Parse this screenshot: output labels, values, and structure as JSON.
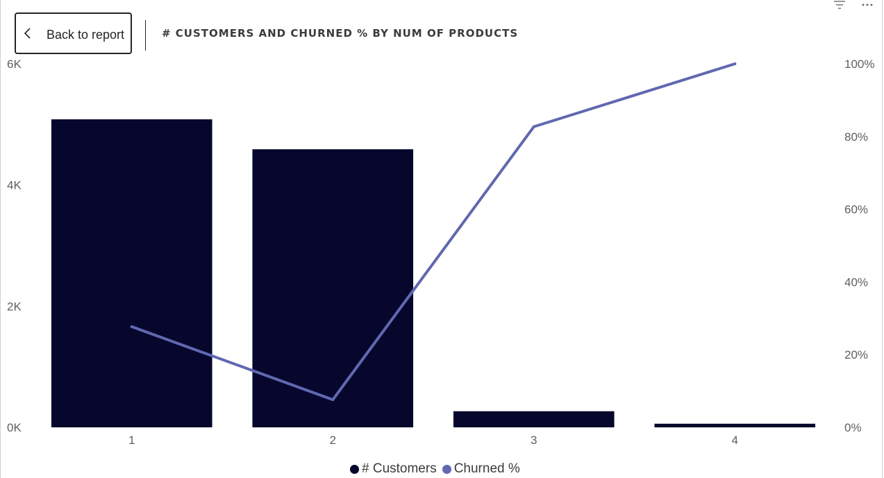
{
  "nav": {
    "back_label": "Back to report"
  },
  "icons": {
    "back": "chevron-left-icon",
    "filter": "filter-icon",
    "more": "more-options-icon"
  },
  "colors": {
    "bar": "#07072e",
    "line": "#6068b0",
    "text": "#3b3b3b",
    "axis": "#605e5c"
  },
  "chart_data": {
    "type": "bar",
    "title": "# CUSTOMERS AND CHURNED % BY NUM OF PRODUCTS",
    "categories": [
      "1",
      "2",
      "3",
      "4"
    ],
    "series": [
      {
        "name": "# Customers",
        "type": "bar",
        "axis": "left",
        "values": [
          5084,
          4590,
          266,
          60
        ]
      },
      {
        "name": "Churned %",
        "type": "line",
        "axis": "right",
        "values": [
          27.7,
          7.6,
          82.7,
          100
        ]
      }
    ],
    "y_left": {
      "ylim": [
        0,
        6000
      ],
      "ticks": [
        0,
        2000,
        4000,
        6000
      ],
      "tick_labels": [
        "0K",
        "2K",
        "4K",
        "6K"
      ]
    },
    "y_right": {
      "ylim": [
        0,
        100
      ],
      "ticks": [
        0,
        20,
        40,
        60,
        80,
        100
      ],
      "tick_labels": [
        "0%",
        "20%",
        "40%",
        "60%",
        "80%",
        "100%"
      ]
    },
    "grid": false,
    "legend": "bottom-center"
  }
}
